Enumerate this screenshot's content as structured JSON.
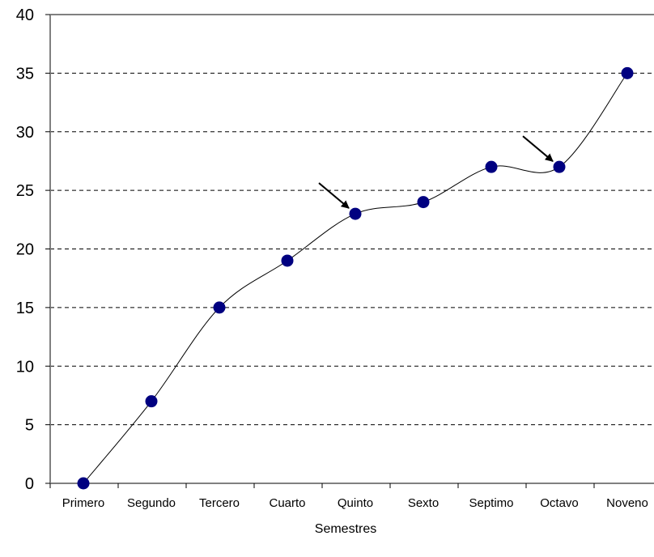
{
  "chart_data": {
    "type": "line",
    "categories": [
      "Primero",
      "Segundo",
      "Tercero",
      "Cuarto",
      "Quinto",
      "Sexto",
      "Septimo",
      "Octavo",
      "Noveno"
    ],
    "series": [
      {
        "values": [
          0,
          7,
          15,
          19,
          23,
          24,
          27,
          27,
          35
        ]
      }
    ],
    "xlabel": "Semestres",
    "ylabel": "",
    "ylim": [
      0,
      40
    ],
    "yticks": [
      "0",
      "5",
      "10",
      "15",
      "20",
      "25",
      "30",
      "35",
      "40"
    ],
    "grid": "horizontal-dashed",
    "smooth": true,
    "annotations": [
      {
        "type": "arrow",
        "points_to": "Quinto"
      },
      {
        "type": "arrow",
        "points_to": "Octavo"
      }
    ],
    "colors": {
      "marker": "#000080",
      "line": "#000000",
      "grid": "#000000",
      "axis": "#808080"
    }
  }
}
